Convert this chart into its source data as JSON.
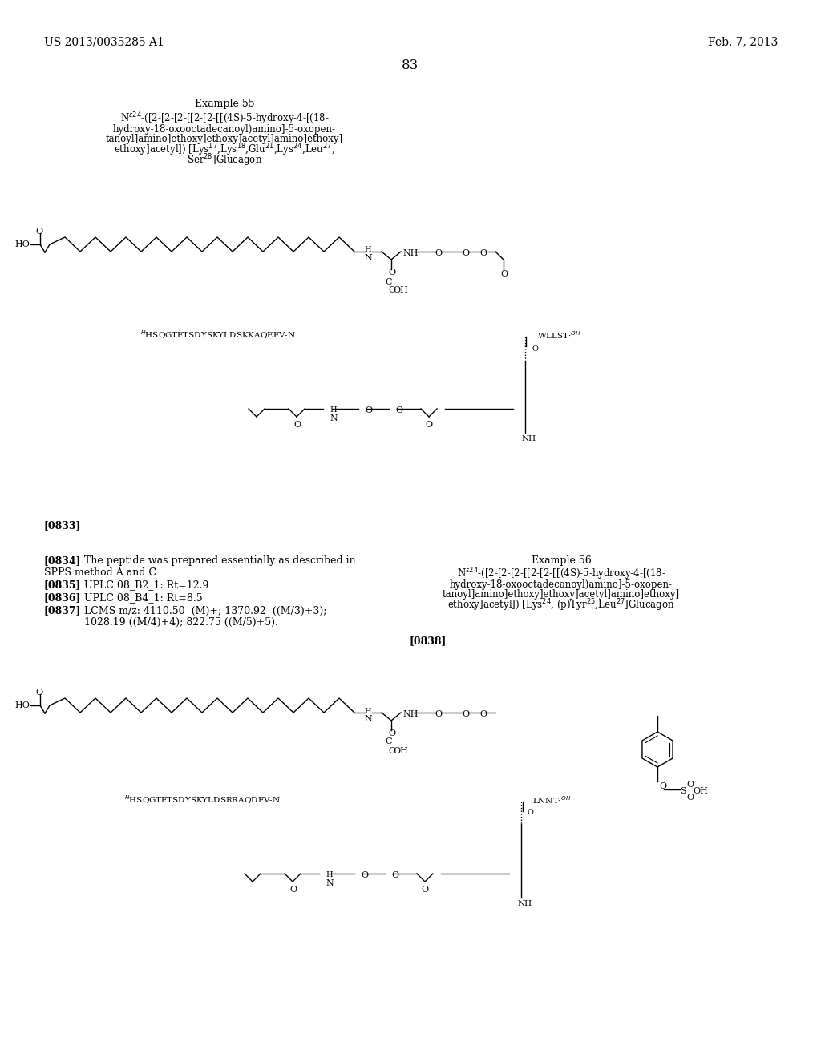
{
  "bg_color": "#ffffff",
  "header_left": "US 2013/0035285 A1",
  "header_right": "Feb. 7, 2013",
  "page_number": "83",
  "example55_title": "Example 55",
  "example55_compound": "Nε²⁴-([2-[2-[2-[[2-[2-[[(4S)-5-hydroxy-4-[(18-\nhydroxy-18-oxooctadecanoyl)amino]-5-oxopen-\ntanoyl]amino]ethoxy]ethoxy]acetyl]amino]ethoxy]\nethoxy]acetyl]) [Lys¹⁷,Lys¹⁸,Glu²¹,Lys²⁴,Leu²⁷,\nSer²⁸]Glucagon",
  "para0833": "[0833]",
  "para0834_text": "[0834] The peptide was prepared essentially as described in\nSPPS method A and C",
  "para0835_text": "[0835] UPLC 08_B2_1: Rt=12.9",
  "para0836_text": "[0836] UPLC 08_B4_1: Rt=8.5",
  "para0837_text": "[0837] LCMS m/z: 4110.50  (M)+; 1370.92  ((M/3)+3);\n1028.19 ((M/4)+4); 822.75 ((M/5)+5).",
  "example56_title": "Example 56",
  "example56_compound": "Nε²⁴-([2-[2-[2-[[2-[2-[[(4S)-5-hydroxy-4-[(18-\nhydroxy-18-oxooctadecanoyl)amino]-5-oxopen-\ntanoyl]amino]ethoxy]ethoxy]acetyl]amino]ethoxy]\nethoxy]acetyl]) [Lys²⁴, (p)Tyr²⁵,Leu²⁷]Glucagon",
  "para0838": "[0838]"
}
